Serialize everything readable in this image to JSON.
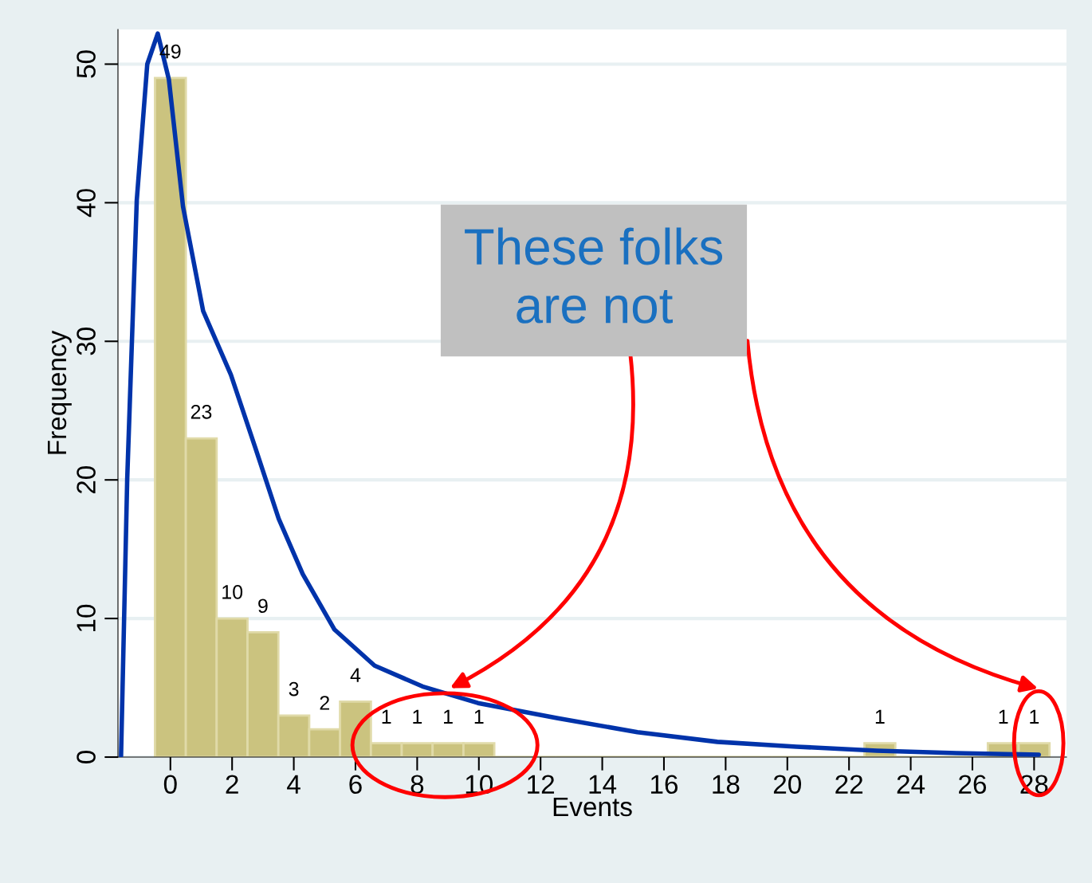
{
  "chart_data": {
    "type": "histogram",
    "xlabel": "Events",
    "ylabel": "Frequency",
    "bins": [
      -0.5,
      0.5,
      1.5,
      2.5,
      3.5,
      4.5,
      5.5,
      6.5,
      7.5,
      8.5,
      9.5,
      10.5,
      11.5,
      12.5,
      13.5,
      14.5,
      15.5,
      16.5,
      17.5,
      18.5,
      19.5,
      20.5,
      21.5,
      22.5,
      23.5,
      24.5,
      25.5,
      26.5,
      27.5,
      28.5
    ],
    "values": [
      49,
      23,
      10,
      9,
      3,
      2,
      4,
      1,
      1,
      1,
      1,
      0,
      0,
      0,
      0,
      0,
      0,
      0,
      0,
      0,
      0,
      0,
      0,
      1,
      0,
      0,
      0,
      1,
      1
    ],
    "value_labels": [
      "49",
      "23",
      "10",
      "9",
      "3",
      "2",
      "4",
      "1",
      "1",
      "1",
      "1",
      null,
      null,
      null,
      null,
      null,
      null,
      null,
      null,
      null,
      null,
      null,
      null,
      "1",
      null,
      null,
      null,
      "1",
      "1"
    ],
    "color": "#cbc37f",
    "series": [
      {
        "type": "line",
        "color": "#0033aa",
        "x": [
          -1.6,
          -1.4,
          -1.09,
          -0.75,
          -0.41,
          -0.05,
          0.41,
          1.06,
          1.96,
          2.74,
          3.51,
          4.29,
          5.32,
          6.62,
          8.17,
          9.97,
          12.56,
          15.14,
          17.73,
          20.3,
          22.9,
          25.48,
          28.15
        ],
        "values": [
          0.1,
          20.1,
          40.2,
          50,
          52.2,
          48.9,
          39.7,
          32.2,
          27.6,
          22.4,
          17.2,
          13.2,
          9.2,
          6.6,
          5.1,
          3.9,
          2.8,
          1.8,
          1.1,
          0.75,
          0.46,
          0.29,
          0.17
        ]
      }
    ],
    "xlim": [
      -1.7,
      29.05
    ],
    "ylim": [
      0,
      52.5
    ],
    "xticks": [
      0,
      2,
      4,
      6,
      8,
      10,
      12,
      14,
      16,
      18,
      20,
      22,
      24,
      26,
      28
    ],
    "yticks": [
      0,
      10,
      20,
      30,
      40,
      50
    ],
    "grid": "y",
    "legend": false,
    "marker": "none",
    "line_style": "solid",
    "annotations": [
      "These folks\nare not"
    ]
  }
}
